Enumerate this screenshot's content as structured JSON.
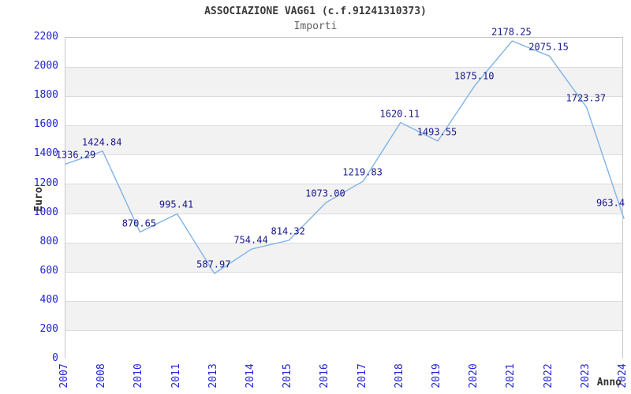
{
  "chart_data": {
    "type": "line",
    "title": "ASSOCIAZIONE VAG61 (c.f.91241310373)",
    "subtitle": "Importi",
    "xlabel": "Anno",
    "ylabel": "Euro",
    "categories": [
      "2007",
      "2008",
      "2010",
      "2011",
      "2013",
      "2014",
      "2015",
      "2016",
      "2017",
      "2018",
      "2019",
      "2020",
      "2021",
      "2022",
      "2023",
      "2024"
    ],
    "values": [
      1336.29,
      1424.84,
      870.65,
      995.41,
      587.97,
      754.44,
      814.32,
      1073.0,
      1219.83,
      1620.11,
      1493.55,
      1875.1,
      2178.25,
      2075.15,
      1723.37,
      963.4
    ],
    "point_labels": [
      "1336.29",
      "1424.84",
      "870.65",
      "995.41",
      "587.97",
      "754.44",
      "814.32",
      "1073.00",
      "1219.83",
      "1620.11",
      "1493.55",
      "1875.10",
      "2178.25",
      "2075.15",
      "1723.37",
      "963.4"
    ],
    "ylim": [
      0,
      2200
    ],
    "ytick_step": 200,
    "yticks": [
      0,
      200,
      400,
      600,
      800,
      1000,
      1200,
      1400,
      1600,
      1800,
      2000,
      2200
    ],
    "grid": "horizontal",
    "background_bands": "alternating white/gray from top",
    "legend": "none",
    "label_offsets": {
      "0": {
        "dx": 14,
        "dy": 0
      },
      "15": {
        "dx": -16,
        "dy": -8
      }
    },
    "colors": {
      "line": "#7fb3e6",
      "point_label": "#18188a",
      "tick_label": "#2222d6",
      "title": "#3a3a3a",
      "subtitle": "#606060",
      "band_gray": "#f2f2f2",
      "gridline": "#dcdcdc",
      "plot_border": "#c8c8c8",
      "axis_title": "#303030"
    }
  }
}
